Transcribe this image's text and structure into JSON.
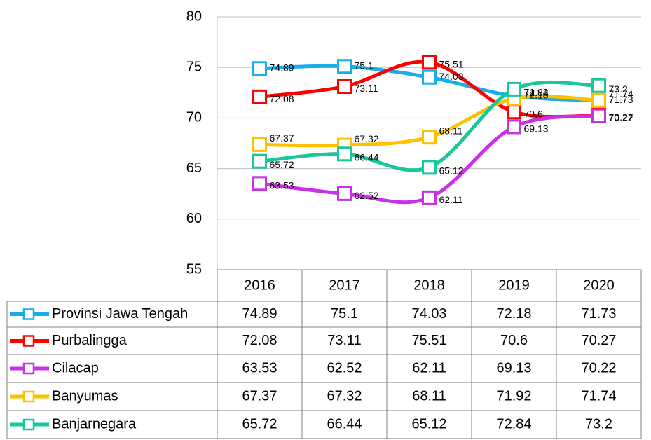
{
  "chart_data": {
    "type": "line",
    "categories": [
      "2016",
      "2017",
      "2018",
      "2019",
      "2020"
    ],
    "series": [
      {
        "name": "Provinsi Jawa Tengah",
        "color": "#1aaee8",
        "values": [
          74.89,
          75.1,
          74.03,
          72.18,
          71.73
        ]
      },
      {
        "name": "Purbalingga",
        "color": "#ff0000",
        "values": [
          72.08,
          73.11,
          75.51,
          70.6,
          70.27
        ]
      },
      {
        "name": "Cilacap",
        "color": "#c832e6",
        "values": [
          63.53,
          62.52,
          62.11,
          69.13,
          70.22
        ]
      },
      {
        "name": "Banyumas",
        "color": "#ffc000",
        "values": [
          67.37,
          67.32,
          68.11,
          71.92,
          71.74
        ]
      },
      {
        "name": "Banjarnegara",
        "color": "#18c79a",
        "values": [
          65.72,
          66.44,
          65.12,
          72.84,
          73.2
        ]
      }
    ],
    "ylim": [
      55,
      80
    ],
    "yticks": [
      55,
      60,
      65,
      70,
      75,
      80
    ],
    "grid": true
  }
}
